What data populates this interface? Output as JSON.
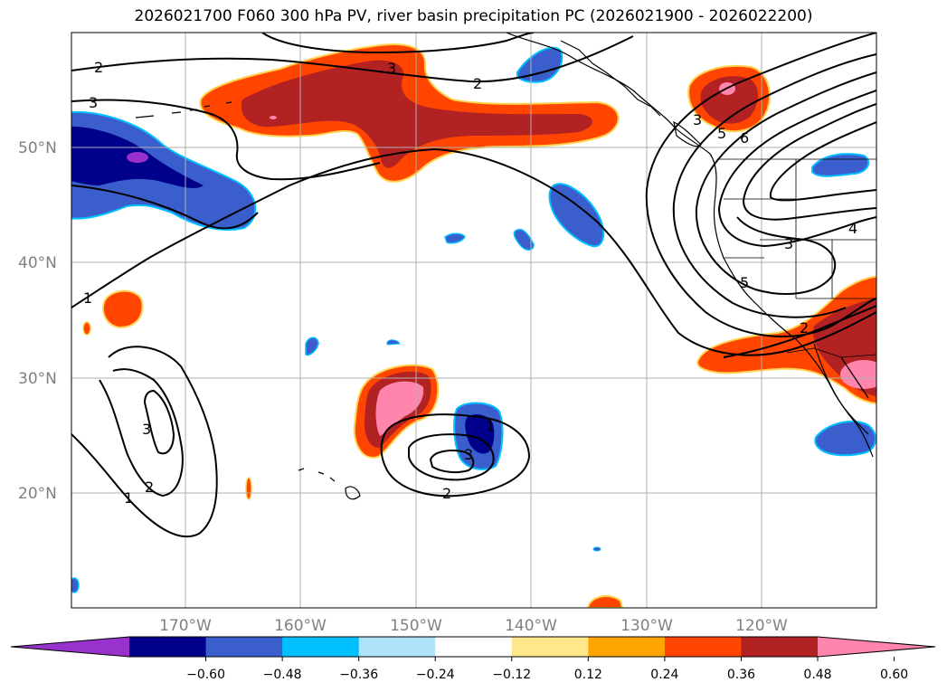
{
  "title": "2026021700 F060 300 hPa PV, river basin precipitation PC (2026021900 - 2026022200)",
  "map": {
    "latitude_labels": [
      "50°N",
      "40°N",
      "30°N",
      "20°N"
    ],
    "longitude_labels": [
      "170°W",
      "160°W",
      "150°W",
      "140°W",
      "130°W",
      "120°W"
    ],
    "land_color": "#ffffff",
    "grid_color": "#b0b0b0"
  },
  "contour_labels": [
    "2",
    "3",
    "2",
    "3",
    "4",
    "3",
    "5",
    "6",
    "1",
    "3",
    "5",
    "2",
    "1",
    "3",
    "2",
    "1",
    "3",
    "2"
  ],
  "colorbar": {
    "tick_labels": [
      "−0.60",
      "−0.48",
      "−0.36",
      "−0.24",
      "−0.12",
      "0.12",
      "0.24",
      "0.36",
      "0.48",
      "0.60"
    ],
    "colors": [
      "#9932cc",
      "#00008b",
      "#3a5fcd",
      "#00bfff",
      "#aee2f8",
      "#ffffff",
      "#ffe88c",
      "#ffa500",
      "#ff4500",
      "#b22222",
      "#ff85ad"
    ]
  }
}
